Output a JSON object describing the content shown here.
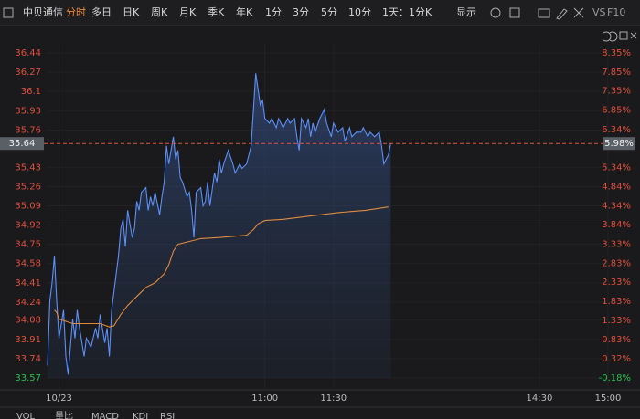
{
  "toolbar": {
    "stock": "中贝通信",
    "tabs": [
      "分时",
      "多日",
      "日K",
      "周K",
      "月K",
      "季K",
      "年K",
      "1分",
      "3分",
      "5分",
      "10分",
      "1天：1分K",
      "显示"
    ],
    "extra": [
      "VS",
      "F10"
    ]
  },
  "indicators": [
    "VOL",
    "量比",
    "MACD",
    "KDJ",
    "RSI"
  ],
  "chart_data": {
    "type": "line",
    "ylim": [
      33.57,
      36.44
    ],
    "yticks": [
      36.44,
      36.27,
      36.1,
      35.93,
      35.76,
      35.43,
      35.26,
      35.09,
      34.92,
      34.75,
      34.58,
      34.41,
      34.24,
      34.08,
      33.91,
      33.74,
      33.57
    ],
    "y2lim": [
      -0.18,
      8.35
    ],
    "y2ticks": [
      {
        "value": 8.35,
        "label": "8.35%"
      },
      {
        "value": 7.85,
        "label": "7.85%"
      },
      {
        "value": 7.35,
        "label": "7.35%"
      },
      {
        "value": 6.85,
        "label": "6.85%"
      },
      {
        "value": 6.34,
        "label": "6.34%"
      },
      {
        "value": 5.34,
        "label": "5.34%"
      },
      {
        "value": 4.84,
        "label": "4.84%"
      },
      {
        "value": 4.34,
        "label": "4.34%"
      },
      {
        "value": 3.84,
        "label": "3.84%"
      },
      {
        "value": 3.33,
        "label": "3.33%"
      },
      {
        "value": 2.83,
        "label": "2.83%"
      },
      {
        "value": 2.33,
        "label": "2.33%"
      },
      {
        "value": 1.83,
        "label": "1.83%"
      },
      {
        "value": 1.33,
        "label": "1.33%"
      },
      {
        "value": 0.83,
        "label": "0.83%"
      },
      {
        "value": 0.32,
        "label": "0.32%"
      },
      {
        "value": -0.18,
        "label": "-0.18%"
      }
    ],
    "xlim": [
      -5,
      240
    ],
    "xticks": [
      {
        "value": 0,
        "label": "10/23"
      },
      {
        "value": 90,
        "label": "11:00"
      },
      {
        "value": 120,
        "label": "11:30"
      },
      {
        "value": 210,
        "label": "14:30"
      },
      {
        "value": 240,
        "label": "15:00"
      }
    ],
    "price_line": {
      "value": 35.64,
      "pct": {
        "value": 5.98,
        "label": "5.98%"
      },
      "color": "#e0553a"
    },
    "series": [
      {
        "name": "price",
        "color": "#5b8ff9",
        "area": true,
        "x": [
          -5,
          -4,
          -3,
          -2,
          -1,
          0,
          2,
          3,
          4,
          6,
          7,
          8,
          9,
          11,
          12,
          14,
          16,
          17,
          18,
          20,
          21,
          22,
          23,
          24,
          26,
          27,
          28,
          29,
          30,
          32,
          33,
          34,
          35,
          36,
          38,
          39,
          40,
          41,
          42,
          44,
          45,
          46,
          47,
          48,
          50,
          51,
          52,
          53,
          54,
          56,
          57,
          58,
          59,
          60,
          62,
          63,
          64,
          65,
          66,
          68,
          69,
          70,
          71,
          72,
          74,
          76,
          77,
          79,
          80,
          82,
          84,
          85,
          86,
          88,
          89,
          90,
          92,
          93,
          95,
          96,
          98,
          100,
          101,
          103,
          104,
          105,
          106,
          108,
          109,
          110,
          111,
          112,
          114,
          115,
          116,
          117,
          119,
          120,
          122,
          124,
          125,
          127,
          128,
          130,
          132,
          133,
          135,
          136,
          138,
          140,
          141,
          142,
          144,
          145
        ],
        "values": [
          33.68,
          34.25,
          34.41,
          34.65,
          34.25,
          33.92,
          34.17,
          33.76,
          33.6,
          34.09,
          33.92,
          34.17,
          34.01,
          33.76,
          33.92,
          33.84,
          34.01,
          33.92,
          34.13,
          33.88,
          34.01,
          33.76,
          34.17,
          34.33,
          34.65,
          34.89,
          34.97,
          34.73,
          35.05,
          34.81,
          34.89,
          35.13,
          35.05,
          35.21,
          35.25,
          35.05,
          35.17,
          35.09,
          35.21,
          35.01,
          35.17,
          35.3,
          35.62,
          35.46,
          35.7,
          35.5,
          35.58,
          35.34,
          35.3,
          35.17,
          35.21,
          35.05,
          34.81,
          35.21,
          35.25,
          35.09,
          35.13,
          35.3,
          35.09,
          35.38,
          35.3,
          35.5,
          35.38,
          35.46,
          35.58,
          35.46,
          35.38,
          35.46,
          35.42,
          35.46,
          35.62,
          35.94,
          36.26,
          35.98,
          36.02,
          35.86,
          35.82,
          35.86,
          35.78,
          35.86,
          35.78,
          35.86,
          35.82,
          35.86,
          35.7,
          35.58,
          35.86,
          35.78,
          35.86,
          35.7,
          35.82,
          35.74,
          35.86,
          35.9,
          35.94,
          35.82,
          35.7,
          35.82,
          35.74,
          35.78,
          35.66,
          35.78,
          35.7,
          35.74,
          35.74,
          35.78,
          35.7,
          35.74,
          35.7,
          35.74,
          35.62,
          35.46,
          35.54,
          35.64
        ]
      },
      {
        "name": "average",
        "color": "#e08a3c",
        "area": false,
        "x": [
          -2,
          -1,
          0,
          3,
          6,
          10,
          14,
          18,
          22,
          24,
          27,
          30,
          34,
          38,
          42,
          46,
          48,
          50,
          52,
          56,
          62,
          70,
          82,
          85,
          87,
          90,
          98,
          110,
          122,
          134,
          144
        ],
        "values": [
          34.17,
          34.15,
          34.09,
          34.07,
          34.05,
          34.05,
          34.05,
          34.05,
          34.02,
          34.03,
          34.13,
          34.21,
          34.29,
          34.37,
          34.41,
          34.49,
          34.57,
          34.69,
          34.75,
          34.77,
          34.8,
          34.81,
          34.83,
          34.88,
          34.93,
          34.96,
          34.97,
          35.0,
          35.03,
          35.05,
          35.08
        ]
      }
    ]
  }
}
